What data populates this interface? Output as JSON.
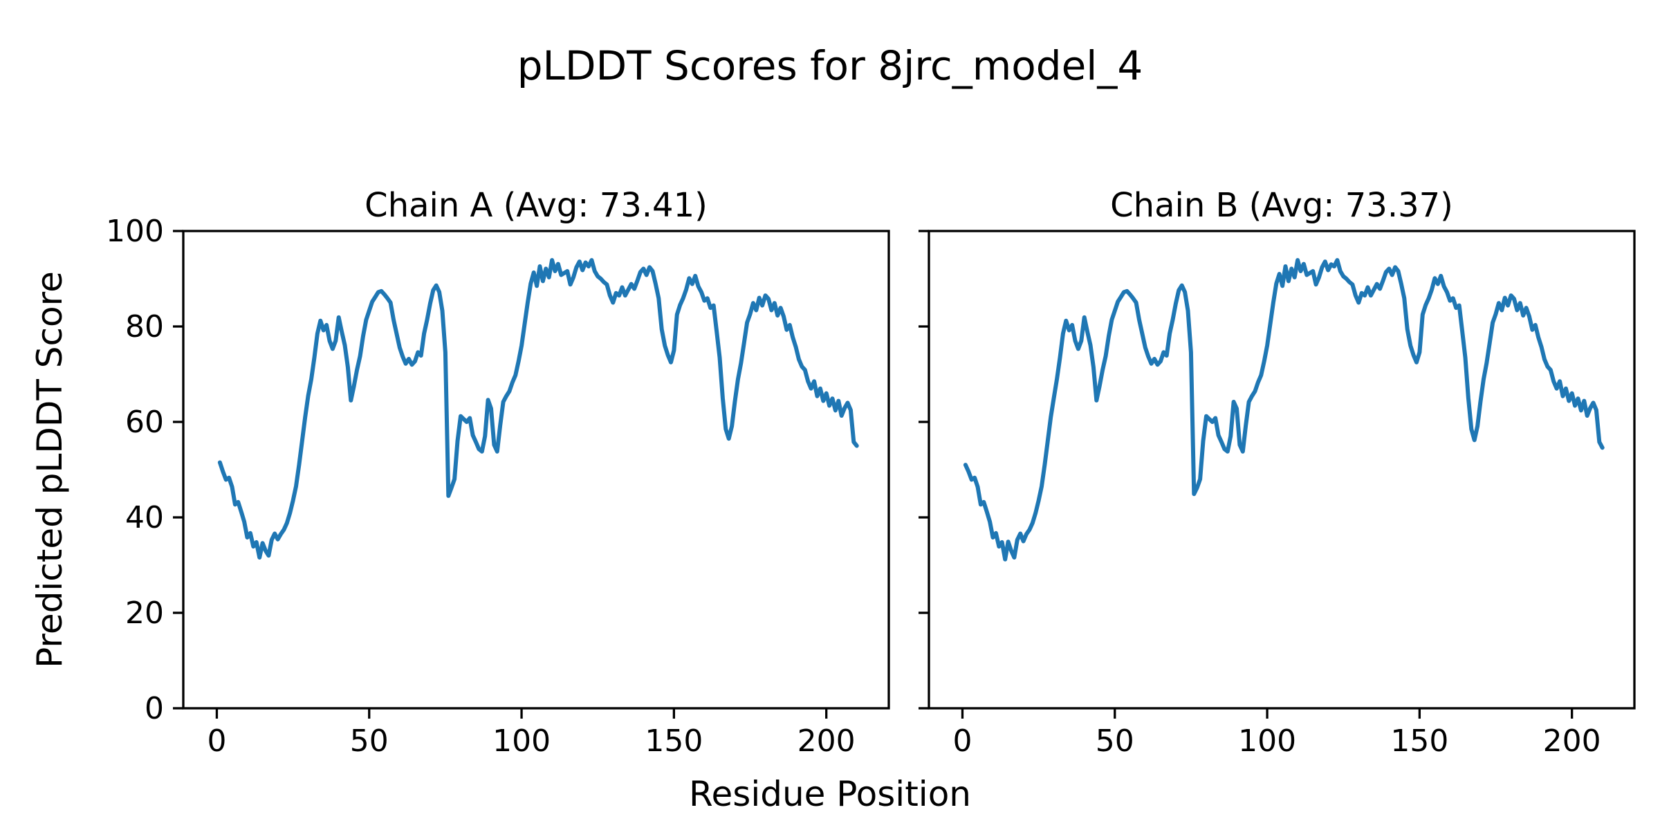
{
  "figure": {
    "title": "pLDDT Scores for 8jrc_model_4",
    "xlabel": "Residue Position",
    "ylabel": "Predicted pLDDT Score",
    "background": "#ffffff",
    "text_color": "#000000"
  },
  "chart_data": {
    "type": "line",
    "line_color": "#1f77b4",
    "grid": false,
    "legend_position": "none",
    "x_ticks": [
      0,
      50,
      100,
      150,
      200
    ],
    "y_ticks": [
      0,
      20,
      40,
      60,
      80,
      100
    ],
    "xlim": [
      -11,
      220.5
    ],
    "ylim": [
      0,
      100
    ],
    "x_start_residue": 1,
    "subplots": [
      {
        "title": "Chain A (Avg: 73.41)",
        "avg": 73.41,
        "y_tick_labels_visible": true,
        "values": [
          51.5,
          49.6,
          47.9,
          48.3,
          46.4,
          42.7,
          43.2,
          41.2,
          39.1,
          35.8,
          36.7,
          33.9,
          34.8,
          31.6,
          34.6,
          33.0,
          32.0,
          35.3,
          36.6,
          35.4,
          36.5,
          37.4,
          38.8,
          40.9,
          43.5,
          46.5,
          51.0,
          56.0,
          61.0,
          65.5,
          69.0,
          73.5,
          78.5,
          81.2,
          79.2,
          80.3,
          77.0,
          75.3,
          77.0,
          81.9,
          78.9,
          76.1,
          71.5,
          64.5,
          67.5,
          70.9,
          73.8,
          78.0,
          81.4,
          83.3,
          85.2,
          86.2,
          87.2,
          87.4,
          86.7,
          85.9,
          85.0,
          81.4,
          78.5,
          75.6,
          73.7,
          72.2,
          73.2,
          72.0,
          72.7,
          74.6,
          73.9,
          78.5,
          81.4,
          84.8,
          87.6,
          88.6,
          87.2,
          83.3,
          74.6,
          44.5,
          46.2,
          48.0,
          56.0,
          61.2,
          60.6,
          60.0,
          60.8,
          57.2,
          55.8,
          54.3,
          53.8,
          57.0,
          64.6,
          62.8,
          55.2,
          53.8,
          59.3,
          64.2,
          65.4,
          66.4,
          68.3,
          69.8,
          72.7,
          76.0,
          80.5,
          85.0,
          89.0,
          91.3,
          88.5,
          92.6,
          89.5,
          92.1,
          90.3,
          93.9,
          91.6,
          93.1,
          90.8,
          91.2,
          91.6,
          88.8,
          90.3,
          92.4,
          93.6,
          91.8,
          93.4,
          92.6,
          93.9,
          91.6,
          90.5,
          90.0,
          89.3,
          88.8,
          86.5,
          85.0,
          87.0,
          86.5,
          88.2,
          86.5,
          87.7,
          88.9,
          87.9,
          89.6,
          91.4,
          92.1,
          90.8,
          92.4,
          91.6,
          88.9,
          85.9,
          79.4,
          76.0,
          74.0,
          72.5,
          75.0,
          82.5,
          84.5,
          85.9,
          87.7,
          90.1,
          88.9,
          90.6,
          88.4,
          87.2,
          85.4,
          85.9,
          83.9,
          84.4,
          79.0,
          73.5,
          65.0,
          58.5,
          56.5,
          59.1,
          64.3,
          68.9,
          72.3,
          76.5,
          80.8,
          82.6,
          84.9,
          83.4,
          86.0,
          84.4,
          86.5,
          85.8,
          83.4,
          84.9,
          82.3,
          83.9,
          82.1,
          79.3,
          80.3,
          77.7,
          75.7,
          73.1,
          71.6,
          70.9,
          68.5,
          67.0,
          68.5,
          65.4,
          67.0,
          64.4,
          66.0,
          63.4,
          64.9,
          62.4,
          64.4,
          61.3,
          62.9,
          64.0,
          62.5,
          55.8,
          55.0
        ]
      },
      {
        "title": "Chain B (Avg: 73.37)",
        "avg": 73.37,
        "y_tick_labels_visible": false,
        "values": [
          51.0,
          49.6,
          47.9,
          48.3,
          46.4,
          42.7,
          43.2,
          41.2,
          39.1,
          35.8,
          36.7,
          33.9,
          34.8,
          31.2,
          34.9,
          33.0,
          31.6,
          35.3,
          36.6,
          35.0,
          36.5,
          37.4,
          38.8,
          40.9,
          43.5,
          46.5,
          51.0,
          56.0,
          61.0,
          65.0,
          69.0,
          73.5,
          78.5,
          81.2,
          79.2,
          80.3,
          77.0,
          75.3,
          77.0,
          81.9,
          78.9,
          76.1,
          71.5,
          64.5,
          67.5,
          70.9,
          73.8,
          78.0,
          81.4,
          83.3,
          85.2,
          86.2,
          87.2,
          87.4,
          86.7,
          85.9,
          85.0,
          81.4,
          78.5,
          75.6,
          73.7,
          72.2,
          73.2,
          72.0,
          72.7,
          74.6,
          73.9,
          78.5,
          81.4,
          84.8,
          87.6,
          88.6,
          87.2,
          83.3,
          74.6,
          44.9,
          46.2,
          48.0,
          56.0,
          61.2,
          60.6,
          60.0,
          60.8,
          57.2,
          55.8,
          54.3,
          53.8,
          57.0,
          64.2,
          62.8,
          55.2,
          53.8,
          59.3,
          64.2,
          65.4,
          66.4,
          68.3,
          69.8,
          72.7,
          76.0,
          80.5,
          85.0,
          89.0,
          91.0,
          88.5,
          92.6,
          89.5,
          92.1,
          90.3,
          93.9,
          91.6,
          93.1,
          90.8,
          91.2,
          91.6,
          88.8,
          90.3,
          92.4,
          93.6,
          91.8,
          93.0,
          92.6,
          93.9,
          91.6,
          90.5,
          90.0,
          89.3,
          88.8,
          86.5,
          85.0,
          87.0,
          86.5,
          88.2,
          86.5,
          87.7,
          88.9,
          87.9,
          89.6,
          91.4,
          92.1,
          90.8,
          92.4,
          91.6,
          88.9,
          85.9,
          79.4,
          76.0,
          74.0,
          72.5,
          74.6,
          82.5,
          84.5,
          85.9,
          87.7,
          90.1,
          88.9,
          90.6,
          88.4,
          87.2,
          85.4,
          85.9,
          83.9,
          84.4,
          79.0,
          73.5,
          65.0,
          58.5,
          56.2,
          59.1,
          64.3,
          68.9,
          72.3,
          76.5,
          80.8,
          82.6,
          84.9,
          83.4,
          86.0,
          84.4,
          86.5,
          85.8,
          83.4,
          84.9,
          82.3,
          83.9,
          82.1,
          79.3,
          80.3,
          77.7,
          75.7,
          73.1,
          71.6,
          70.9,
          68.5,
          67.0,
          68.5,
          65.4,
          67.0,
          64.4,
          66.0,
          63.4,
          64.9,
          62.4,
          64.4,
          61.3,
          62.9,
          64.0,
          62.5,
          55.8,
          54.6
        ]
      }
    ]
  }
}
